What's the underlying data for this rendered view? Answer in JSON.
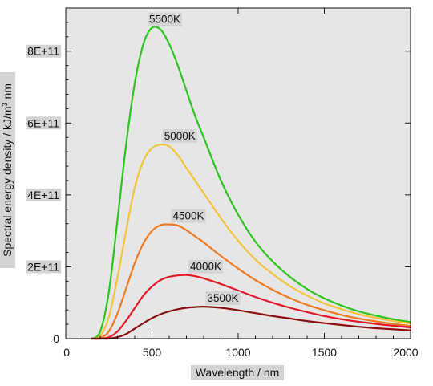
{
  "chart_data": {
    "type": "line",
    "title": "",
    "xlabel": "Wavelength / nm",
    "ylabel": "Spectral energy density / kJ/m³ nm",
    "ylabel_prefix": "Spectral energy density / kJ/m",
    "ylabel_sup": "3",
    "ylabel_suffix": " nm",
    "xlim": [
      0,
      2000
    ],
    "ylim": [
      0,
      920000000000
    ],
    "x_ticks": [
      0,
      500,
      1000,
      1500,
      2000
    ],
    "x_tick_labels": [
      "0",
      "500",
      "1000",
      "1500",
      "2000"
    ],
    "y_ticks": [
      0,
      200000000000,
      400000000000,
      600000000000,
      800000000000
    ],
    "y_tick_labels": [
      "0",
      "2E+11",
      "4E+11",
      "6E+11",
      "8E+11"
    ],
    "grid": false,
    "legend": "none",
    "plot_background": "#e6e6e6",
    "x": [
      150,
      200,
      250,
      300,
      350,
      400,
      450,
      500,
      550,
      600,
      650,
      700,
      750,
      800,
      900,
      1000,
      1100,
      1200,
      1300,
      1400,
      1500,
      1600,
      1700,
      1800,
      1900,
      2000
    ],
    "series": [
      {
        "name": "5500K",
        "color": "#2ec41f",
        "values": [
          0,
          20000000000,
          130000000000,
          330000000000,
          540000000000,
          710000000000,
          820000000000,
          865000000000,
          860000000000,
          820000000000,
          760000000000,
          690000000000,
          620000000000,
          560000000000,
          440000000000,
          345000000000,
          270000000000,
          215000000000,
          172000000000,
          138000000000,
          112000000000,
          92000000000,
          76000000000,
          64000000000,
          54000000000,
          46000000000
        ]
      },
      {
        "name": "5000K",
        "color": "#f5c33b",
        "values": [
          0,
          8000000000,
          60000000000,
          170000000000,
          300000000000,
          420000000000,
          495000000000,
          530000000000,
          540000000000,
          535000000000,
          510000000000,
          475000000000,
          440000000000,
          405000000000,
          335000000000,
          272000000000,
          220000000000,
          180000000000,
          146000000000,
          120000000000,
          98000000000,
          82000000000,
          68000000000,
          58000000000,
          49000000000,
          42000000000
        ]
      },
      {
        "name": "4500K",
        "color": "#f07a22",
        "values": [
          0,
          2000000000,
          20000000000,
          70000000000,
          140000000000,
          210000000000,
          265000000000,
          300000000000,
          316000000000,
          318000000000,
          315000000000,
          302000000000,
          285000000000,
          268000000000,
          230000000000,
          195000000000,
          163000000000,
          136000000000,
          113000000000,
          94000000000,
          79000000000,
          66000000000,
          56000000000,
          48000000000,
          41000000000,
          35000000000
        ]
      },
      {
        "name": "4000K",
        "color": "#e41826",
        "values": [
          0,
          0,
          4000000000,
          20000000000,
          50000000000,
          85000000000,
          120000000000,
          145000000000,
          163000000000,
          172000000000,
          176000000000,
          177000000000,
          174000000000,
          168000000000,
          152000000000,
          134000000000,
          116000000000,
          100000000000,
          86000000000,
          74000000000,
          63000000000,
          54000000000,
          47000000000,
          41000000000,
          36000000000,
          31000000000
        ]
      },
      {
        "name": "3500K",
        "color": "#8e0d0f",
        "values": [
          0,
          0,
          0,
          4000000000,
          13000000000,
          28000000000,
          43000000000,
          57000000000,
          68000000000,
          76000000000,
          82000000000,
          86000000000,
          88000000000,
          89000000000,
          86000000000,
          79000000000,
          71000000000,
          63000000000,
          56000000000,
          49000000000,
          43000000000,
          38000000000,
          33000000000,
          29000000000,
          26000000000,
          23000000000
        ]
      }
    ]
  }
}
